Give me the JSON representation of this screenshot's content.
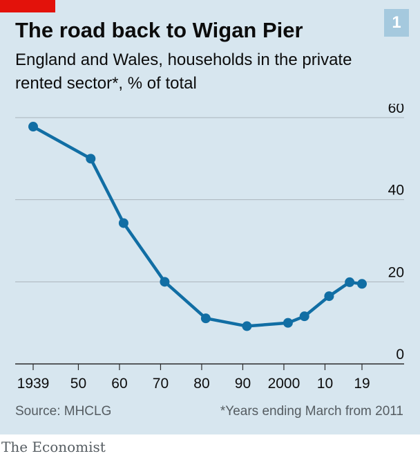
{
  "header": {
    "title": "The road back to Wigan Pier",
    "subtitle": "England and Wales, households in the private rented sector*, % of total",
    "badge": "1"
  },
  "footer": {
    "source": "Source: MHCLG",
    "note": "*Years ending March from 2011",
    "brand": "The Economist"
  },
  "colors": {
    "background": "#d7e6ef",
    "line": "#116ea4",
    "accent": "#e3120b",
    "badge": "#a5c9de"
  },
  "chart_data": {
    "type": "line",
    "title": "The road back to Wigan Pier",
    "subtitle": "England and Wales, households in the private rented sector*, % of total",
    "xlabel": "",
    "ylabel": "",
    "xlim": [
      1935,
      2032
    ],
    "ylim": [
      0,
      60
    ],
    "y_ticks": [
      0,
      20,
      40,
      60
    ],
    "x_ticks": [
      {
        "value": 1939,
        "label": "1939"
      },
      {
        "value": 1950,
        "label": "50"
      },
      {
        "value": 1960,
        "label": "60"
      },
      {
        "value": 1970,
        "label": "70"
      },
      {
        "value": 1980,
        "label": "80"
      },
      {
        "value": 1990,
        "label": "90"
      },
      {
        "value": 2000,
        "label": "2000"
      },
      {
        "value": 2010,
        "label": "10"
      },
      {
        "value": 2019,
        "label": "19"
      }
    ],
    "grid": true,
    "series": [
      {
        "x": [
          1939,
          1953,
          1961,
          1971,
          1981,
          1991,
          2001,
          2005,
          2011,
          2016,
          2019
        ],
        "y": [
          57.8,
          50.0,
          34.3,
          20.0,
          11.1,
          9.2,
          10.0,
          11.6,
          16.5,
          19.9,
          19.5
        ]
      }
    ]
  }
}
